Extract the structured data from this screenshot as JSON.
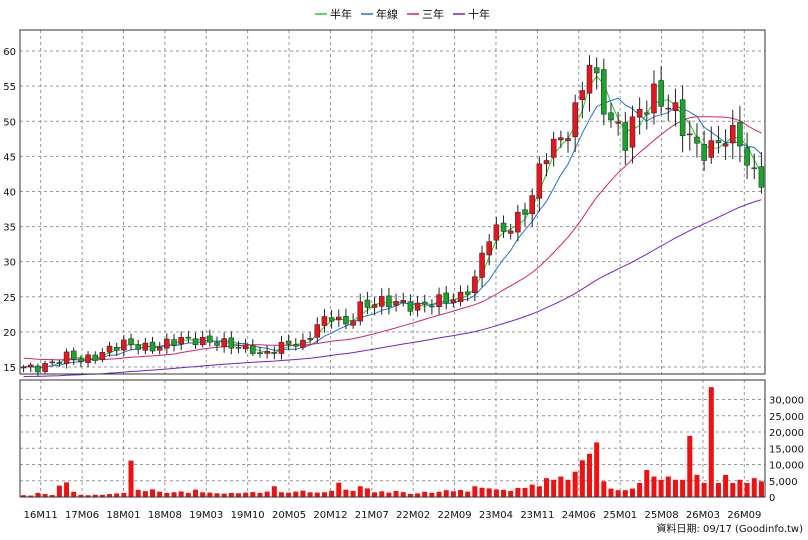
{
  "chart_data": {
    "type": "candlestick",
    "legend": [
      {
        "label": "半年",
        "color": "#22cc22"
      },
      {
        "label": "年線",
        "color": "#1f77d0"
      },
      {
        "label": "三年",
        "color": "#d8216a"
      },
      {
        "label": "十年",
        "color": "#7a1fc8"
      }
    ],
    "price_axis": {
      "ylim": [
        14,
        63
      ],
      "ticks": [
        15,
        20,
        25,
        30,
        35,
        40,
        45,
        50,
        55,
        60
      ]
    },
    "volume_axis": {
      "ylim": [
        0,
        36000
      ],
      "ticks": [
        "0",
        "5,000",
        "10,000",
        "15,000",
        "20,000",
        "25,000",
        "30,000"
      ],
      "tick_values": [
        0,
        5000,
        10000,
        15000,
        20000,
        25000,
        30000
      ]
    },
    "x_ticks": [
      "16M11",
      "17M06",
      "18M01",
      "18M08",
      "19M03",
      "19M10",
      "20M05",
      "20M12",
      "21M07",
      "22M02",
      "22M09",
      "23M04",
      "23M11",
      "24M06",
      "25M01",
      "25M08",
      "26M03",
      "26M09"
    ],
    "up_color": "#e8141e",
    "down_color": "#19a52a",
    "volume_color": "#ee1111",
    "grid": true,
    "price_anchors": [
      [
        0,
        15.0
      ],
      [
        2,
        14.8
      ],
      [
        4,
        15.6
      ],
      [
        6,
        16.6
      ],
      [
        8,
        16.0
      ],
      [
        10,
        16.4
      ],
      [
        12,
        17.6
      ],
      [
        14,
        18.4
      ],
      [
        16,
        18.0
      ],
      [
        18,
        17.6
      ],
      [
        20,
        18.4
      ],
      [
        22,
        19.0
      ],
      [
        24,
        18.8
      ],
      [
        26,
        18.6
      ],
      [
        28,
        18.4
      ],
      [
        30,
        17.8
      ],
      [
        32,
        17.5
      ],
      [
        33,
        16.6
      ],
      [
        35,
        17.5
      ],
      [
        37,
        18.4
      ],
      [
        39,
        18.2
      ],
      [
        41,
        21.0
      ],
      [
        43,
        22.3
      ],
      [
        45,
        21.0
      ],
      [
        47,
        23.5
      ],
      [
        49,
        24.2
      ],
      [
        51,
        24.3
      ],
      [
        53,
        24.0
      ],
      [
        55,
        23.5
      ],
      [
        57,
        24.3
      ],
      [
        59,
        24.6
      ],
      [
        61,
        24.9
      ],
      [
        63,
        27.5
      ],
      [
        65,
        34.0
      ],
      [
        67,
        34.5
      ],
      [
        69,
        35.8
      ],
      [
        71,
        39.5
      ],
      [
        73,
        46.0
      ],
      [
        75,
        47.2
      ],
      [
        77,
        51.0
      ],
      [
        79,
        59.0
      ],
      [
        80,
        55.0
      ],
      [
        82,
        50.0
      ],
      [
        84,
        47.5
      ],
      [
        86,
        51.5
      ],
      [
        88,
        53.5
      ],
      [
        90,
        52.5
      ],
      [
        92,
        49.5
      ],
      [
        94,
        46.0
      ],
      [
        96,
        46.0
      ],
      [
        98,
        48.0
      ],
      [
        100,
        47.5
      ],
      [
        101,
        44.0
      ],
      [
        102,
        42.0
      ]
    ],
    "volume": [
      550,
      450,
      1300,
      900,
      600,
      3500,
      4500,
      1600,
      650,
      550,
      700,
      650,
      900,
      1100,
      1250,
      11200,
      2200,
      1800,
      2350,
      1650,
      1250,
      1450,
      1700,
      1250,
      2250,
      1450,
      1350,
      1150,
      1050,
      1250,
      1150,
      1350,
      1500,
      1250,
      1650,
      3300,
      1450,
      1350,
      1650,
      1950,
      1450,
      1350,
      1450,
      1900,
      4400,
      2250,
      1850,
      3300,
      2650,
      1450,
      1750,
      1350,
      1850,
      1500,
      950,
      1100,
      1600,
      1300,
      1600,
      2100,
      1750,
      2150,
      1650,
      3300,
      2850,
      2650,
      2300,
      2200,
      1850,
      2800,
      2800,
      3800,
      3300,
      5800,
      5300,
      6300,
      5300,
      7800,
      11300,
      13300,
      16800,
      4800,
      2600,
      2100,
      2100,
      2600,
      4300,
      8300,
      6300,
      5300,
      6300,
      5300,
      5300,
      18800,
      6800,
      4300,
      33800,
      4300,
      6800,
      4300,
      5300,
      4300,
      5800,
      4800
    ]
  },
  "source_note": "資料日期: 09/17  (Goodinfo.tw)"
}
